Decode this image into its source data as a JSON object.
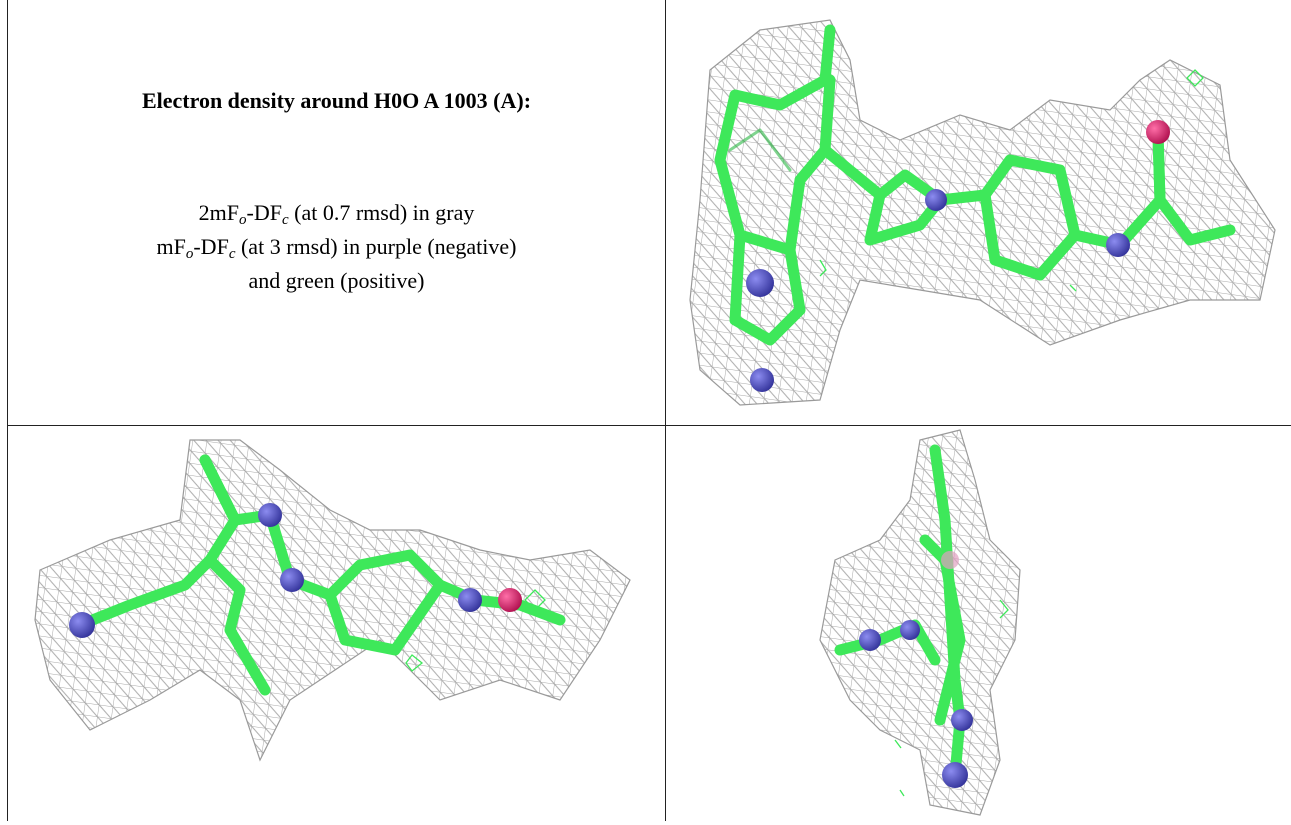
{
  "caption": {
    "title": "Electron density around H0O A 1003 (A):",
    "lines": [
      [
        "2mF",
        "o",
        "-DF",
        "c",
        " (at 0.7 rmsd) in gray"
      ],
      [
        "mF",
        "o",
        "-DF",
        "c",
        " (at 3 rmsd) in purple (negative)"
      ],
      [
        "and green (positive)"
      ]
    ]
  }
}
